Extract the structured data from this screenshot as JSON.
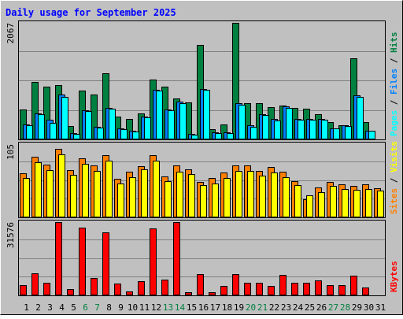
{
  "title": "Daily usage for September 2025",
  "colors": {
    "frame": "#c0c0c0",
    "plot_bg": "#c0c0c0",
    "grid": "#808080",
    "title_text": "#0000ff",
    "hits": "#008040",
    "files": "#0080ff",
    "pages": "#00ffff",
    "visits": "#ffff00",
    "sites": "#ff8000",
    "kbytes": "#ff0000",
    "day_normal": "#000000",
    "day_weekend": "#008040",
    "bar_outline": "#000000"
  },
  "legend": {
    "hits": "Hits",
    "files": "Files",
    "pages": "Pages",
    "sep1": " / ",
    "sep2": " / ",
    "visits": "Visits",
    "sites": "Sites",
    "sep3": " / ",
    "kbytes": "KBytes"
  },
  "axes": {
    "top_max": "2067",
    "mid_max": "105",
    "bottom_max": "31576"
  },
  "chart_data": {
    "type": "bar",
    "title": "Daily usage for September 2025",
    "x": [
      "1",
      "2",
      "3",
      "4",
      "5",
      "6",
      "7",
      "8",
      "9",
      "10",
      "11",
      "12",
      "13",
      "14",
      "15",
      "16",
      "17",
      "18",
      "19",
      "20",
      "21",
      "22",
      "23",
      "24",
      "25",
      "26",
      "27",
      "28",
      "29",
      "30",
      "31"
    ],
    "weekend_days": [
      6,
      7,
      13,
      14,
      20,
      21,
      27,
      28
    ],
    "panels": [
      {
        "name": "top",
        "ylim": [
          0,
          2067
        ],
        "y_tick_label": "2067",
        "series": [
          {
            "name": "Hits",
            "values": [
              530,
              1020,
              940,
              960,
              240,
              860,
              800,
              1170,
              410,
              370,
              460,
              1060,
              930,
              720,
              650,
              1680,
              180,
              270,
              2067,
              640,
              640,
              570,
              600,
              560,
              540,
              450,
              310,
              250,
              1440,
              310,
              0
            ]
          },
          {
            "name": "Files",
            "values": [
              260,
              460,
              350,
              790,
              110,
              520,
              220,
              560,
              190,
              150,
              400,
              880,
              530,
              670,
              100,
              900,
              120,
              120,
              640,
              250,
              450,
              360,
              580,
              370,
              370,
              370,
              200,
              250,
              780,
              160,
              0
            ]
          },
          {
            "name": "Pages",
            "values": [
              250,
              440,
              300,
              760,
              100,
              500,
              210,
              540,
              180,
              140,
              390,
              860,
              510,
              640,
              90,
              880,
              110,
              110,
              620,
              230,
              430,
              340,
              560,
              350,
              350,
              350,
              190,
              240,
              750,
              150,
              0
            ]
          }
        ]
      },
      {
        "name": "middle",
        "ylim": [
          0,
          105
        ],
        "y_tick_label": "105",
        "series": [
          {
            "name": "Sites",
            "values": [
              63,
              87,
              76,
              98,
              68,
              85,
              75,
              89,
              55,
              66,
              73,
              89,
              59,
              74,
              69,
              51,
              56,
              64,
              74,
              74,
              67,
              72,
              66,
              52,
              26,
              43,
              51,
              47,
              45,
              47,
              42
            ]
          },
          {
            "name": "Visits",
            "values": [
              56,
              79,
              68,
              90,
              61,
              77,
              67,
              81,
              48,
              58,
              69,
              81,
              52,
              66,
              62,
              46,
              49,
              57,
              67,
              67,
              60,
              64,
              58,
              46,
              32,
              36,
              45,
              41,
              39,
              41,
              38
            ]
          }
        ]
      },
      {
        "name": "bottom",
        "ylim": [
          0,
          31576
        ],
        "y_tick_label": "31576",
        "series": [
          {
            "name": "KBytes",
            "values": [
              4300,
              9600,
              5600,
              31576,
              2800,
              29200,
              7300,
              27200,
              5000,
              1700,
              6000,
              28900,
              6900,
              31576,
              1500,
              9300,
              1500,
              4200,
              9200,
              5300,
              5500,
              4000,
              8800,
              5400,
              5300,
              6600,
              4400,
              4400,
              8500,
              3400,
              0
            ]
          }
        ]
      }
    ]
  }
}
